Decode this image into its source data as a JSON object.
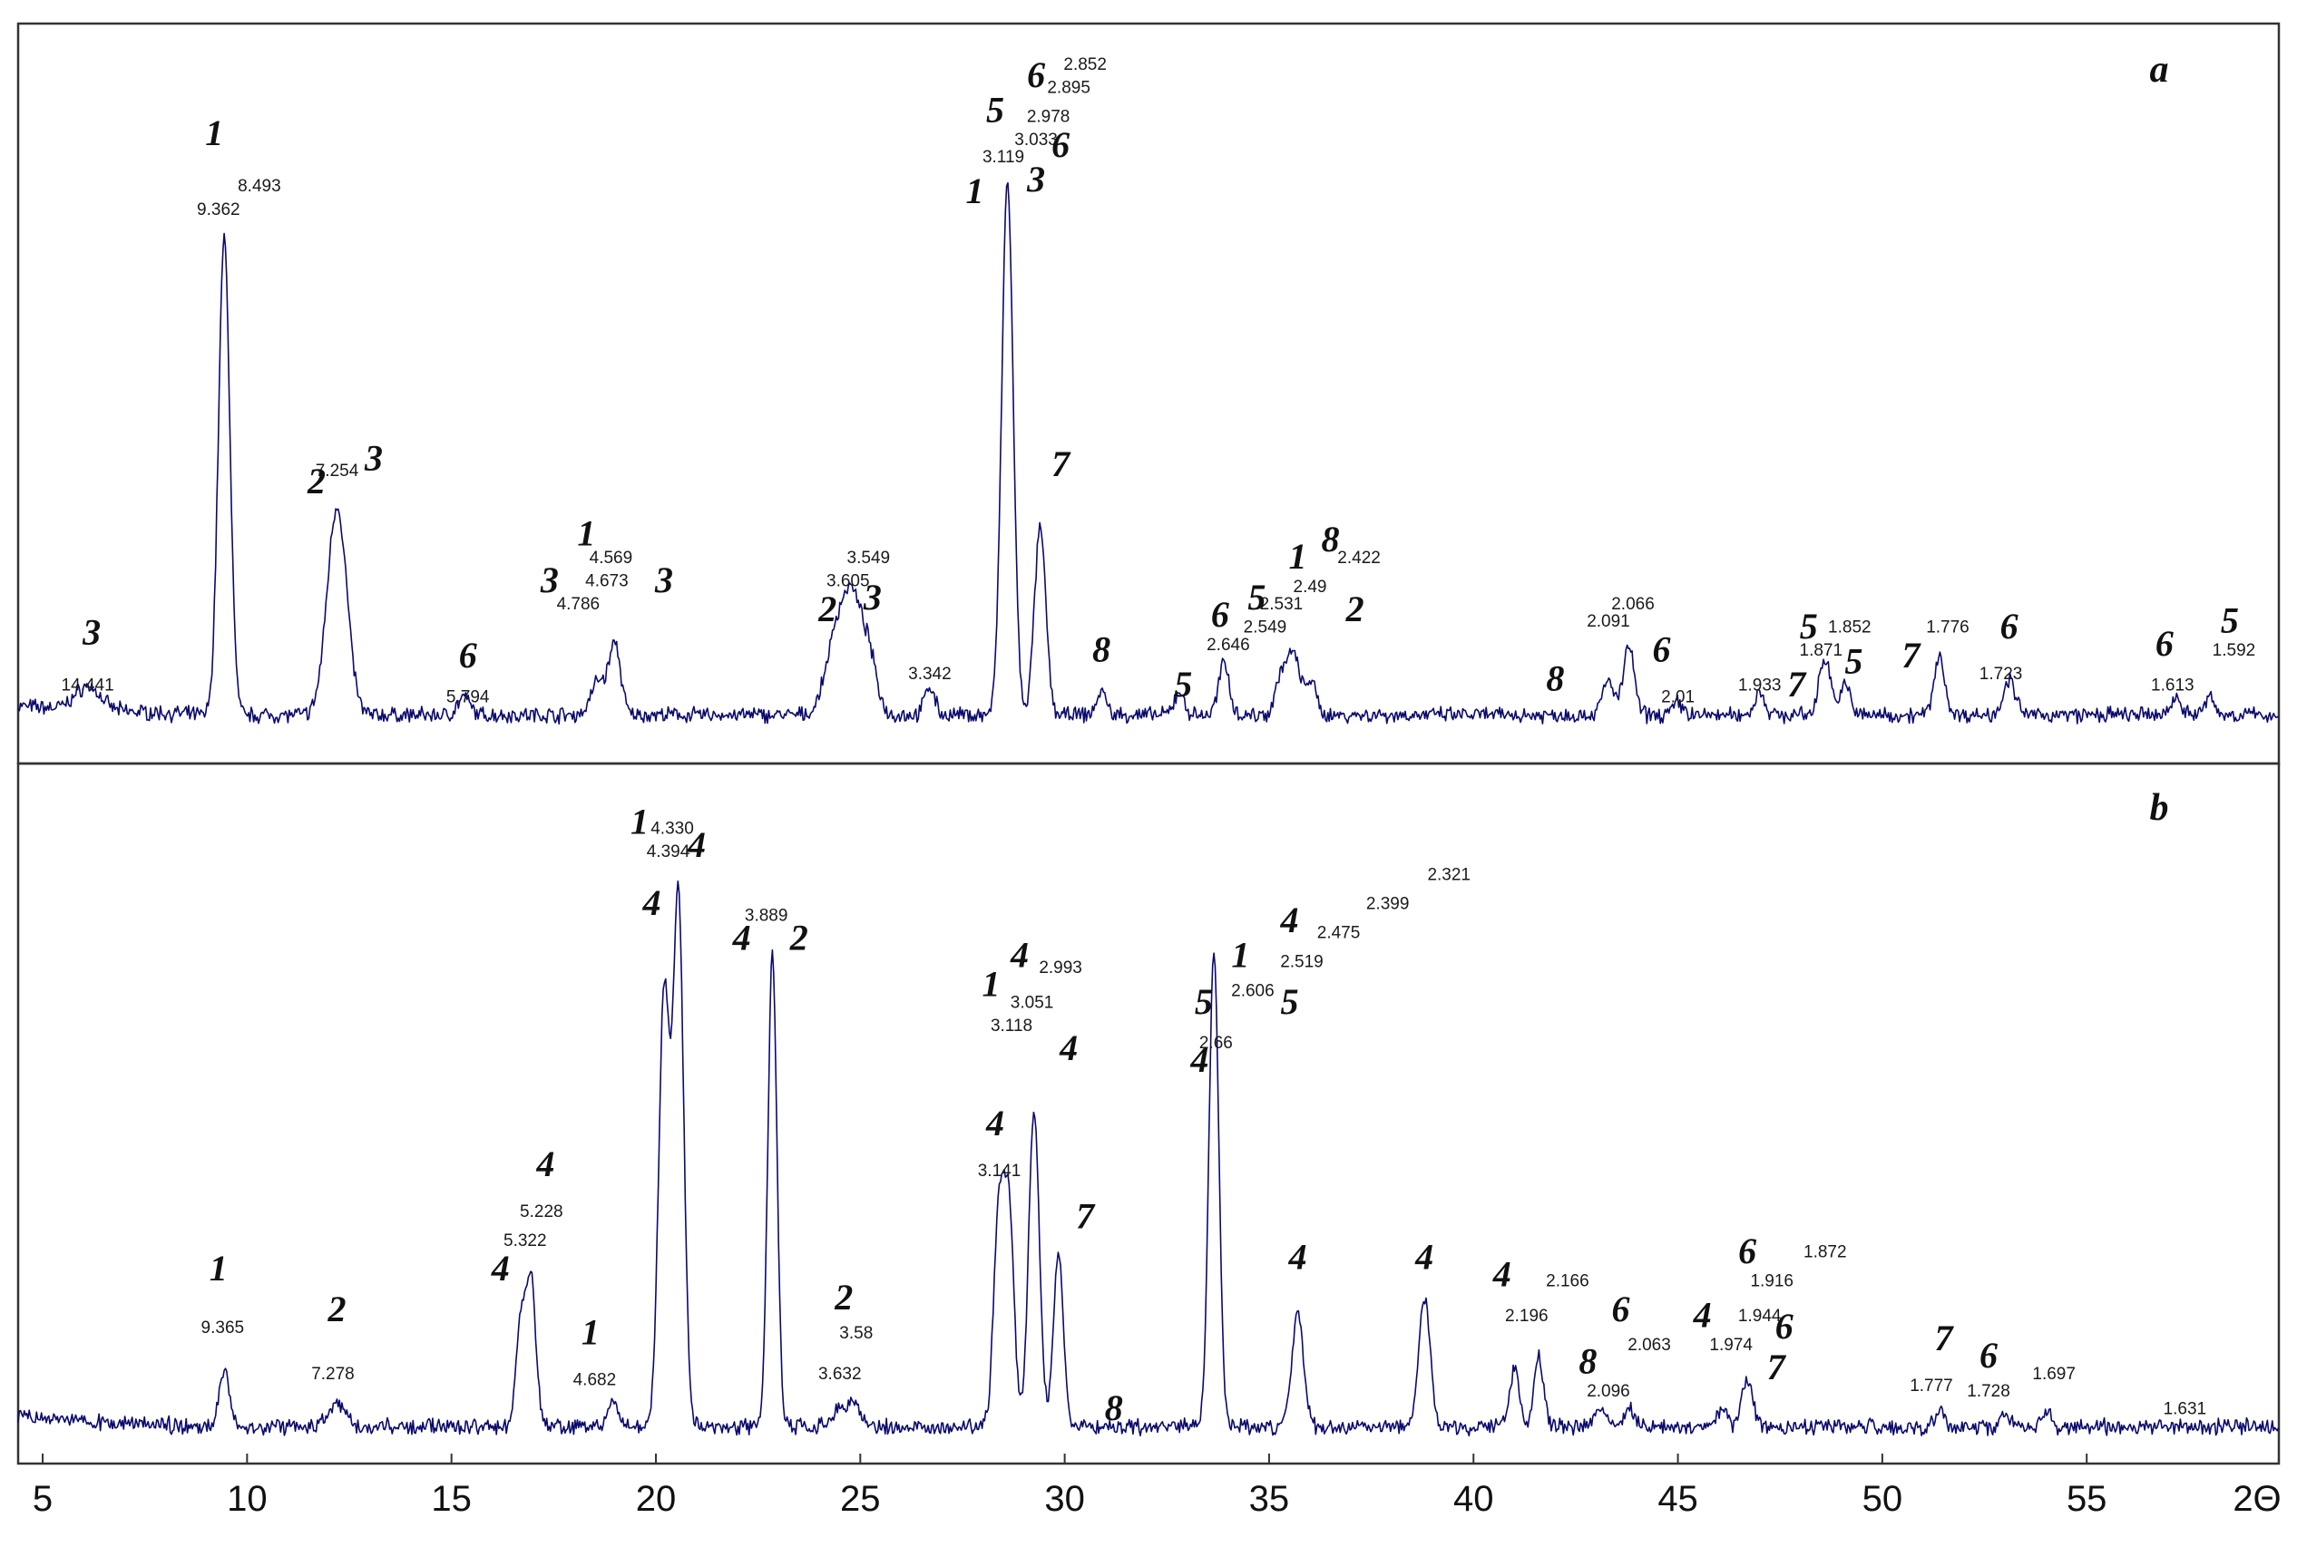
{
  "chart_data": [
    {
      "type": "line",
      "panel_label": "a",
      "title": "",
      "xlabel": "2Θ",
      "ylabel": "",
      "xlim": [
        4.4,
        59.7
      ],
      "x_ticks": [
        5,
        10,
        15,
        20,
        25,
        30,
        35,
        40,
        45,
        50,
        55
      ],
      "x_tick_labels": [
        "5",
        "10",
        "15",
        "20",
        "25",
        "30",
        "35",
        "40",
        "45",
        "50",
        "55"
      ],
      "x_axis_end_label": "2Θ",
      "grid": false,
      "legend": "none",
      "series": [
        {
          "peaks": [
            {
              "x": 6.1,
              "h": 0.04,
              "w": 0.3
            },
            {
              "x": 9.44,
              "h": 0.82,
              "w": 0.14
            },
            {
              "x": 12.2,
              "h": 0.36,
              "w": 0.24
            },
            {
              "x": 15.3,
              "h": 0.03,
              "w": 0.15
            },
            {
              "x": 18.6,
              "h": 0.06,
              "w": 0.18
            },
            {
              "x": 19.0,
              "h": 0.12,
              "w": 0.14
            },
            {
              "x": 24.4,
              "h": 0.13,
              "w": 0.25
            },
            {
              "x": 24.8,
              "h": 0.17,
              "w": 0.22
            },
            {
              "x": 25.2,
              "h": 0.1,
              "w": 0.2
            },
            {
              "x": 26.7,
              "h": 0.05,
              "w": 0.12
            },
            {
              "x": 28.6,
              "h": 0.92,
              "w": 0.14
            },
            {
              "x": 29.4,
              "h": 0.32,
              "w": 0.14
            },
            {
              "x": 30.9,
              "h": 0.04,
              "w": 0.12
            },
            {
              "x": 32.8,
              "h": 0.04,
              "w": 0.12
            },
            {
              "x": 33.9,
              "h": 0.09,
              "w": 0.13
            },
            {
              "x": 35.3,
              "h": 0.07,
              "w": 0.14
            },
            {
              "x": 35.6,
              "h": 0.1,
              "w": 0.14
            },
            {
              "x": 36.0,
              "h": 0.06,
              "w": 0.14
            },
            {
              "x": 43.3,
              "h": 0.06,
              "w": 0.14
            },
            {
              "x": 43.8,
              "h": 0.12,
              "w": 0.13
            },
            {
              "x": 45.0,
              "h": 0.02,
              "w": 0.14
            },
            {
              "x": 47.0,
              "h": 0.04,
              "w": 0.12
            },
            {
              "x": 48.6,
              "h": 0.1,
              "w": 0.14
            },
            {
              "x": 49.1,
              "h": 0.05,
              "w": 0.13
            },
            {
              "x": 51.4,
              "h": 0.1,
              "w": 0.13
            },
            {
              "x": 53.1,
              "h": 0.06,
              "w": 0.15
            },
            {
              "x": 57.2,
              "h": 0.03,
              "w": 0.13
            },
            {
              "x": 58.0,
              "h": 0.03,
              "w": 0.12
            }
          ]
        }
      ],
      "d_labels": [
        {
          "text": "14.441",
          "x": 6.1,
          "y": 0.06
        },
        {
          "text": "8.493",
          "x": 10.3,
          "y": 0.92
        },
        {
          "text": "9.362",
          "x": 9.3,
          "y": 0.88
        },
        {
          "text": "7.254",
          "x": 12.2,
          "y": 0.43
        },
        {
          "text": "5.794",
          "x": 15.4,
          "y": 0.04
        },
        {
          "text": "4.569",
          "x": 18.9,
          "y": 0.28
        },
        {
          "text": "4.673",
          "x": 18.8,
          "y": 0.24
        },
        {
          "text": "4.786",
          "x": 18.1,
          "y": 0.2
        },
        {
          "text": "3.549",
          "x": 25.2,
          "y": 0.28
        },
        {
          "text": "3.605",
          "x": 24.7,
          "y": 0.24
        },
        {
          "text": "3.342",
          "x": 26.7,
          "y": 0.08
        },
        {
          "text": "3.119",
          "x": 28.5,
          "y": 0.97
        },
        {
          "text": "3.033",
          "x": 29.3,
          "y": 1.0
        },
        {
          "text": "2.978",
          "x": 29.6,
          "y": 1.04
        },
        {
          "text": "2.895",
          "x": 30.1,
          "y": 1.09
        },
        {
          "text": "2.852",
          "x": 30.5,
          "y": 1.13
        },
        {
          "text": "2.646",
          "x": 34.0,
          "y": 0.13
        },
        {
          "text": "2.549",
          "x": 34.9,
          "y": 0.16
        },
        {
          "text": "2.531",
          "x": 35.3,
          "y": 0.2
        },
        {
          "text": "2.49",
          "x": 36.0,
          "y": 0.23
        },
        {
          "text": "2.422",
          "x": 37.2,
          "y": 0.28
        },
        {
          "text": "2.091",
          "x": 43.3,
          "y": 0.17
        },
        {
          "text": "2.066",
          "x": 43.9,
          "y": 0.2
        },
        {
          "text": "2.01",
          "x": 45.0,
          "y": 0.04
        },
        {
          "text": "1.933",
          "x": 47.0,
          "y": 0.06
        },
        {
          "text": "1.852",
          "x": 49.2,
          "y": 0.16
        },
        {
          "text": "1.871",
          "x": 48.5,
          "y": 0.12
        },
        {
          "text": "1.776",
          "x": 51.6,
          "y": 0.16
        },
        {
          "text": "1.723",
          "x": 52.9,
          "y": 0.08
        },
        {
          "text": "1.613",
          "x": 57.1,
          "y": 0.06
        },
        {
          "text": "1.592",
          "x": 58.6,
          "y": 0.12
        }
      ],
      "phase_labels": [
        {
          "text": "3",
          "x": 6.2,
          "y": 0.14
        },
        {
          "text": "1",
          "x": 9.2,
          "y": 1.0
        },
        {
          "text": "2",
          "x": 11.7,
          "y": 0.4
        },
        {
          "text": "3",
          "x": 13.1,
          "y": 0.44
        },
        {
          "text": "6",
          "x": 15.4,
          "y": 0.1
        },
        {
          "text": "1",
          "x": 18.3,
          "y": 0.31
        },
        {
          "text": "3",
          "x": 17.4,
          "y": 0.23
        },
        {
          "text": "3",
          "x": 20.2,
          "y": 0.23
        },
        {
          "text": "2",
          "x": 24.2,
          "y": 0.18
        },
        {
          "text": "3",
          "x": 25.3,
          "y": 0.2
        },
        {
          "text": "1",
          "x": 27.8,
          "y": 0.9
        },
        {
          "text": "5",
          "x": 28.3,
          "y": 1.04
        },
        {
          "text": "3",
          "x": 29.3,
          "y": 0.92
        },
        {
          "text": "6",
          "x": 29.9,
          "y": 0.98
        },
        {
          "text": "6",
          "x": 29.3,
          "y": 1.1
        },
        {
          "text": "7",
          "x": 29.9,
          "y": 0.43
        },
        {
          "text": "8",
          "x": 30.9,
          "y": 0.11
        },
        {
          "text": "5",
          "x": 32.9,
          "y": 0.05
        },
        {
          "text": "6",
          "x": 33.8,
          "y": 0.17
        },
        {
          "text": "5",
          "x": 34.7,
          "y": 0.2
        },
        {
          "text": "1",
          "x": 35.7,
          "y": 0.27
        },
        {
          "text": "8",
          "x": 36.5,
          "y": 0.3
        },
        {
          "text": "2",
          "x": 37.1,
          "y": 0.18
        },
        {
          "text": "8",
          "x": 42.0,
          "y": 0.06
        },
        {
          "text": "6",
          "x": 44.6,
          "y": 0.11
        },
        {
          "text": "7",
          "x": 47.9,
          "y": 0.05
        },
        {
          "text": "5",
          "x": 48.2,
          "y": 0.15
        },
        {
          "text": "5",
          "x": 49.3,
          "y": 0.09
        },
        {
          "text": "7",
          "x": 50.7,
          "y": 0.1
        },
        {
          "text": "6",
          "x": 53.1,
          "y": 0.15
        },
        {
          "text": "6",
          "x": 56.9,
          "y": 0.12
        },
        {
          "text": "5",
          "x": 58.5,
          "y": 0.16
        }
      ]
    },
    {
      "type": "line",
      "panel_label": "b",
      "title": "",
      "xlabel": "2Θ",
      "ylabel": "",
      "xlim": [
        4.4,
        59.7
      ],
      "x_ticks": [
        5,
        10,
        15,
        20,
        25,
        30,
        35,
        40,
        45,
        50,
        55
      ],
      "x_tick_labels": [
        "5",
        "10",
        "15",
        "20",
        "25",
        "30",
        "35",
        "40",
        "45",
        "50",
        "55"
      ],
      "x_axis_end_label": "2Θ",
      "grid": false,
      "legend": "none",
      "series": [
        {
          "peaks": [
            {
              "x": 9.44,
              "h": 0.1,
              "w": 0.12
            },
            {
              "x": 12.2,
              "h": 0.04,
              "w": 0.2
            },
            {
              "x": 16.7,
              "h": 0.18,
              "w": 0.12
            },
            {
              "x": 16.95,
              "h": 0.24,
              "w": 0.12
            },
            {
              "x": 18.95,
              "h": 0.04,
              "w": 0.12
            },
            {
              "x": 20.2,
              "h": 0.75,
              "w": 0.13
            },
            {
              "x": 20.55,
              "h": 0.92,
              "w": 0.13
            },
            {
              "x": 22.85,
              "h": 0.82,
              "w": 0.11
            },
            {
              "x": 24.5,
              "h": 0.03,
              "w": 0.15
            },
            {
              "x": 24.85,
              "h": 0.04,
              "w": 0.15
            },
            {
              "x": 28.4,
              "h": 0.38,
              "w": 0.13
            },
            {
              "x": 28.65,
              "h": 0.34,
              "w": 0.12
            },
            {
              "x": 29.25,
              "h": 0.55,
              "w": 0.13
            },
            {
              "x": 29.85,
              "h": 0.3,
              "w": 0.12
            },
            {
              "x": 33.65,
              "h": 0.82,
              "w": 0.12
            },
            {
              "x": 35.7,
              "h": 0.2,
              "w": 0.14
            },
            {
              "x": 38.8,
              "h": 0.22,
              "w": 0.14
            },
            {
              "x": 41.0,
              "h": 0.1,
              "w": 0.12
            },
            {
              "x": 41.6,
              "h": 0.12,
              "w": 0.12
            },
            {
              "x": 43.1,
              "h": 0.03,
              "w": 0.13
            },
            {
              "x": 43.8,
              "h": 0.03,
              "w": 0.12
            },
            {
              "x": 46.1,
              "h": 0.03,
              "w": 0.12
            },
            {
              "x": 46.7,
              "h": 0.08,
              "w": 0.13
            },
            {
              "x": 51.4,
              "h": 0.03,
              "w": 0.12
            },
            {
              "x": 53.0,
              "h": 0.02,
              "w": 0.12
            },
            {
              "x": 54.0,
              "h": 0.03,
              "w": 0.12
            }
          ]
        }
      ],
      "d_labels": [
        {
          "text": "9.365",
          "x": 9.4,
          "y": 0.18
        },
        {
          "text": "7.278",
          "x": 12.1,
          "y": 0.1
        },
        {
          "text": "5.322",
          "x": 16.8,
          "y": 0.33
        },
        {
          "text": "5.228",
          "x": 17.2,
          "y": 0.38
        },
        {
          "text": "4.682",
          "x": 18.5,
          "y": 0.09
        },
        {
          "text": "4.394",
          "x": 20.3,
          "y": 1.0
        },
        {
          "text": "4.330",
          "x": 20.4,
          "y": 1.04
        },
        {
          "text": "3.889",
          "x": 22.7,
          "y": 0.89
        },
        {
          "text": "3.58",
          "x": 24.9,
          "y": 0.17
        },
        {
          "text": "3.632",
          "x": 24.5,
          "y": 0.1
        },
        {
          "text": "3.141",
          "x": 28.4,
          "y": 0.45
        },
        {
          "text": "3.118",
          "x": 28.7,
          "y": 0.7
        },
        {
          "text": "3.051",
          "x": 29.2,
          "y": 0.74
        },
        {
          "text": "2.993",
          "x": 29.9,
          "y": 0.8
        },
        {
          "text": "2.66",
          "x": 33.7,
          "y": 0.67
        },
        {
          "text": "2.606",
          "x": 34.6,
          "y": 0.76
        },
        {
          "text": "2.519",
          "x": 35.8,
          "y": 0.81
        },
        {
          "text": "2.475",
          "x": 36.7,
          "y": 0.86
        },
        {
          "text": "2.399",
          "x": 37.9,
          "y": 0.91
        },
        {
          "text": "2.321",
          "x": 39.4,
          "y": 0.96
        },
        {
          "text": "2.196",
          "x": 41.3,
          "y": 0.2
        },
        {
          "text": "2.166",
          "x": 42.3,
          "y": 0.26
        },
        {
          "text": "2.096",
          "x": 43.3,
          "y": 0.07
        },
        {
          "text": "2.063",
          "x": 44.3,
          "y": 0.15
        },
        {
          "text": "1.974",
          "x": 46.3,
          "y": 0.15
        },
        {
          "text": "1.944",
          "x": 47.0,
          "y": 0.2
        },
        {
          "text": "1.916",
          "x": 47.3,
          "y": 0.26
        },
        {
          "text": "1.872",
          "x": 48.6,
          "y": 0.31
        },
        {
          "text": "1.777",
          "x": 51.2,
          "y": 0.08
        },
        {
          "text": "1.728",
          "x": 52.6,
          "y": 0.07
        },
        {
          "text": "1.697",
          "x": 54.2,
          "y": 0.1
        },
        {
          "text": "1.631",
          "x": 57.4,
          "y": 0.04
        }
      ],
      "phase_labels": [
        {
          "text": "1",
          "x": 9.3,
          "y": 0.27
        },
        {
          "text": "2",
          "x": 12.2,
          "y": 0.2
        },
        {
          "text": "4",
          "x": 16.2,
          "y": 0.27
        },
        {
          "text": "4",
          "x": 17.3,
          "y": 0.45
        },
        {
          "text": "1",
          "x": 18.4,
          "y": 0.16
        },
        {
          "text": "4",
          "x": 19.9,
          "y": 0.9
        },
        {
          "text": "1",
          "x": 19.6,
          "y": 1.04
        },
        {
          "text": "4",
          "x": 21.0,
          "y": 1.0
        },
        {
          "text": "4",
          "x": 22.1,
          "y": 0.84
        },
        {
          "text": "2",
          "x": 23.5,
          "y": 0.84
        },
        {
          "text": "2",
          "x": 24.6,
          "y": 0.22
        },
        {
          "text": "4",
          "x": 28.3,
          "y": 0.52
        },
        {
          "text": "1",
          "x": 28.2,
          "y": 0.76
        },
        {
          "text": "4",
          "x": 28.9,
          "y": 0.81
        },
        {
          "text": "4",
          "x": 30.1,
          "y": 0.65
        },
        {
          "text": "7",
          "x": 30.5,
          "y": 0.36
        },
        {
          "text": "8",
          "x": 31.2,
          "y": 0.03
        },
        {
          "text": "5",
          "x": 33.4,
          "y": 0.73
        },
        {
          "text": "4",
          "x": 33.3,
          "y": 0.63
        },
        {
          "text": "1",
          "x": 34.3,
          "y": 0.81
        },
        {
          "text": "4",
          "x": 35.5,
          "y": 0.87
        },
        {
          "text": "5",
          "x": 35.5,
          "y": 0.73
        },
        {
          "text": "4",
          "x": 35.7,
          "y": 0.29
        },
        {
          "text": "4",
          "x": 38.8,
          "y": 0.29
        },
        {
          "text": "4",
          "x": 40.7,
          "y": 0.26
        },
        {
          "text": "8",
          "x": 42.8,
          "y": 0.11
        },
        {
          "text": "6",
          "x": 43.6,
          "y": 0.2
        },
        {
          "text": "4",
          "x": 45.6,
          "y": 0.19
        },
        {
          "text": "6",
          "x": 46.7,
          "y": 0.3
        },
        {
          "text": "6",
          "x": 47.6,
          "y": 0.17
        },
        {
          "text": "7",
          "x": 47.4,
          "y": 0.1
        },
        {
          "text": "7",
          "x": 51.5,
          "y": 0.15
        },
        {
          "text": "6",
          "x": 52.6,
          "y": 0.12
        }
      ]
    }
  ]
}
